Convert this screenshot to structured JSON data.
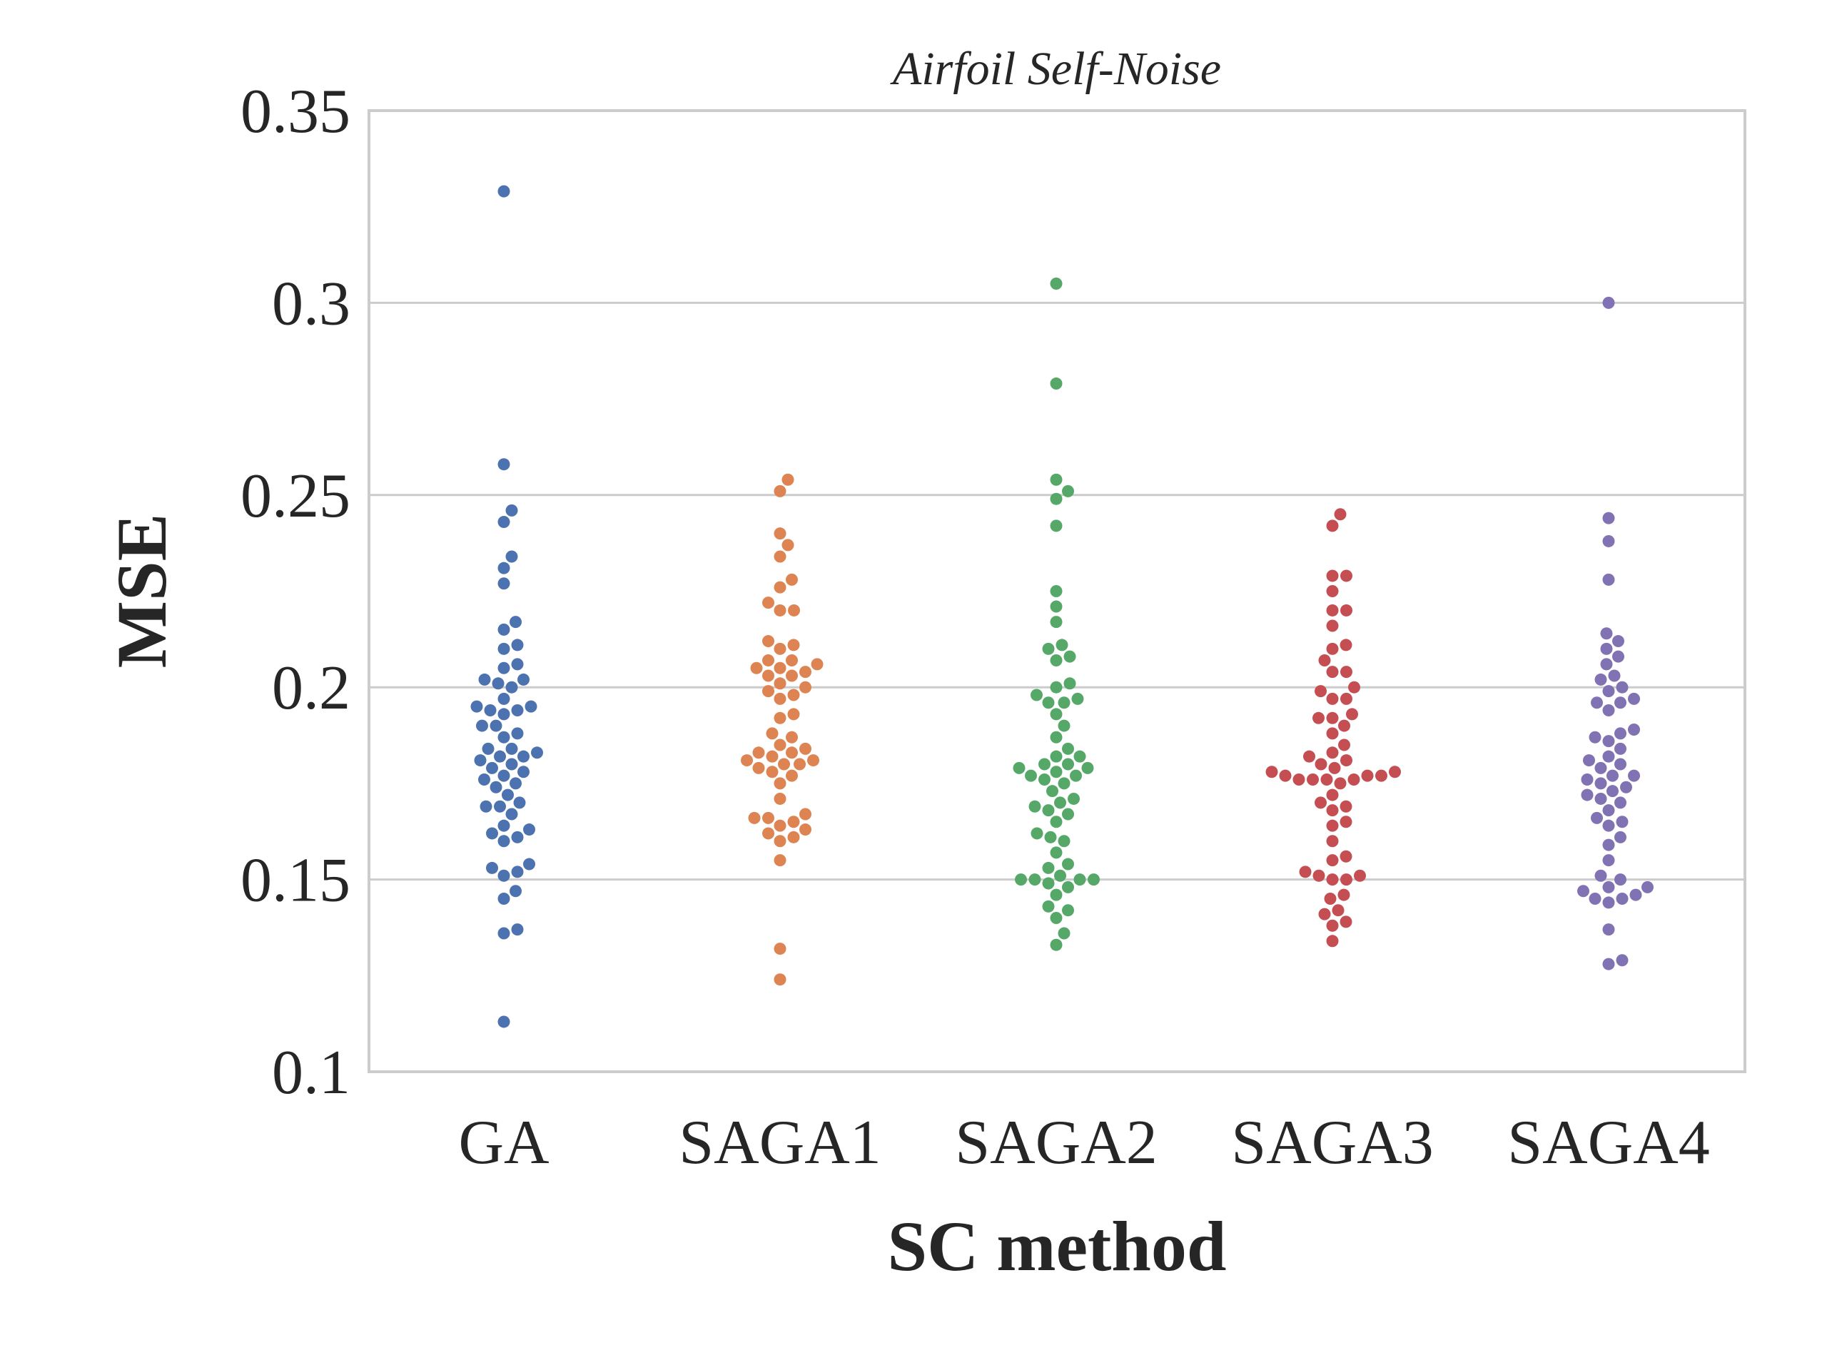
{
  "chart_data": {
    "type": "scatter",
    "subtype": "swarm",
    "title": "Airfoil Self-Noise",
    "xlabel": "SC method",
    "ylabel": "MSE",
    "ylim": [
      0.1,
      0.35
    ],
    "yticks": [
      0.1,
      0.15,
      0.2,
      0.25,
      0.3,
      0.35
    ],
    "ytick_labels": [
      "0.1",
      "0.15",
      "0.2",
      "0.25",
      "0.3",
      "0.35"
    ],
    "grid": "horizontal",
    "legend": "none",
    "categories": [
      "GA",
      "SAGA1",
      "SAGA2",
      "SAGA3",
      "SAGA4"
    ],
    "series": [
      {
        "color": "#4c72b0",
        "values": [
          0.329,
          0.258,
          0.246,
          0.243,
          0.234,
          0.231,
          0.227,
          0.217,
          0.215,
          0.211,
          0.21,
          0.206,
          0.205,
          0.202,
          0.202,
          0.201,
          0.2,
          0.197,
          0.195,
          0.195,
          0.194,
          0.194,
          0.193,
          0.19,
          0.19,
          0.188,
          0.187,
          0.184,
          0.184,
          0.183,
          0.182,
          0.182,
          0.181,
          0.18,
          0.179,
          0.178,
          0.177,
          0.176,
          0.175,
          0.174,
          0.172,
          0.17,
          0.169,
          0.169,
          0.167,
          0.164,
          0.163,
          0.162,
          0.161,
          0.16,
          0.154,
          0.153,
          0.152,
          0.151,
          0.147,
          0.145,
          0.137,
          0.136,
          0.113
        ]
      },
      {
        "color": "#dd8452",
        "values": [
          0.254,
          0.251,
          0.24,
          0.237,
          0.234,
          0.228,
          0.226,
          0.222,
          0.22,
          0.22,
          0.212,
          0.211,
          0.21,
          0.207,
          0.207,
          0.206,
          0.205,
          0.205,
          0.204,
          0.203,
          0.203,
          0.201,
          0.2,
          0.199,
          0.198,
          0.197,
          0.193,
          0.192,
          0.188,
          0.187,
          0.185,
          0.184,
          0.183,
          0.183,
          0.182,
          0.181,
          0.181,
          0.18,
          0.18,
          0.179,
          0.178,
          0.177,
          0.175,
          0.171,
          0.167,
          0.166,
          0.166,
          0.165,
          0.164,
          0.163,
          0.162,
          0.161,
          0.16,
          0.155,
          0.132,
          0.124
        ]
      },
      {
        "color": "#55a868",
        "values": [
          0.305,
          0.279,
          0.254,
          0.251,
          0.249,
          0.242,
          0.225,
          0.221,
          0.217,
          0.211,
          0.21,
          0.208,
          0.207,
          0.201,
          0.2,
          0.198,
          0.197,
          0.196,
          0.196,
          0.193,
          0.19,
          0.187,
          0.184,
          0.182,
          0.182,
          0.18,
          0.18,
          0.179,
          0.179,
          0.178,
          0.177,
          0.177,
          0.176,
          0.175,
          0.173,
          0.171,
          0.17,
          0.169,
          0.168,
          0.167,
          0.165,
          0.162,
          0.161,
          0.16,
          0.157,
          0.154,
          0.153,
          0.151,
          0.15,
          0.15,
          0.15,
          0.15,
          0.149,
          0.148,
          0.146,
          0.143,
          0.142,
          0.14,
          0.136,
          0.133
        ]
      },
      {
        "color": "#c44e52",
        "values": [
          0.245,
          0.242,
          0.229,
          0.229,
          0.225,
          0.22,
          0.22,
          0.216,
          0.211,
          0.21,
          0.207,
          0.204,
          0.204,
          0.2,
          0.199,
          0.197,
          0.197,
          0.193,
          0.192,
          0.192,
          0.19,
          0.188,
          0.185,
          0.183,
          0.182,
          0.181,
          0.18,
          0.179,
          0.178,
          0.178,
          0.177,
          0.177,
          0.177,
          0.176,
          0.176,
          0.176,
          0.176,
          0.175,
          0.172,
          0.17,
          0.169,
          0.168,
          0.165,
          0.164,
          0.16,
          0.156,
          0.155,
          0.152,
          0.151,
          0.151,
          0.15,
          0.15,
          0.146,
          0.145,
          0.142,
          0.141,
          0.139,
          0.138,
          0.134
        ]
      },
      {
        "color": "#8172b3",
        "values": [
          0.3,
          0.244,
          0.238,
          0.228,
          0.214,
          0.212,
          0.21,
          0.208,
          0.206,
          0.203,
          0.202,
          0.2,
          0.199,
          0.197,
          0.196,
          0.196,
          0.194,
          0.189,
          0.188,
          0.187,
          0.186,
          0.184,
          0.182,
          0.181,
          0.18,
          0.179,
          0.177,
          0.177,
          0.176,
          0.175,
          0.174,
          0.173,
          0.172,
          0.171,
          0.17,
          0.168,
          0.166,
          0.165,
          0.164,
          0.161,
          0.159,
          0.155,
          0.151,
          0.15,
          0.148,
          0.148,
          0.147,
          0.146,
          0.145,
          0.145,
          0.144,
          0.137,
          0.129,
          0.128
        ]
      }
    ]
  }
}
